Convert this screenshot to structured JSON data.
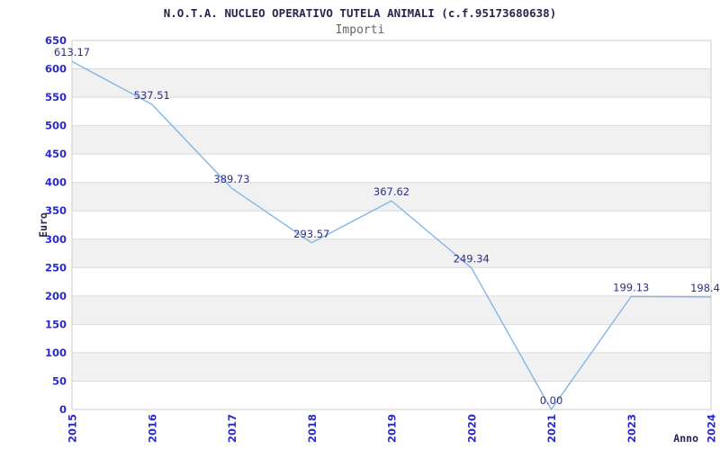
{
  "header": {
    "title": "N.O.T.A. NUCLEO OPERATIVO TUTELA ANIMALI (c.f.95173680638)",
    "subtitle": "Importi"
  },
  "chart_data": {
    "type": "line",
    "title": "N.O.T.A. NUCLEO OPERATIVO TUTELA ANIMALI (c.f.95173680638)",
    "subtitle": "Importi",
    "xlabel": "Anno",
    "ylabel": "Euro",
    "categories": [
      "2015",
      "2016",
      "2017",
      "2018",
      "2019",
      "2020",
      "2021",
      "2023",
      "2024"
    ],
    "values": [
      613.17,
      537.51,
      389.73,
      293.57,
      367.62,
      249.34,
      0.0,
      199.13,
      198.4
    ],
    "point_labels": [
      "613.17",
      "537.51",
      "389.73",
      "293.57",
      "367.62",
      "249.34",
      "0.00",
      "199.13",
      "198.4"
    ],
    "ylim": [
      0,
      650
    ],
    "ytick_step": 50,
    "grid": "horizontal-only",
    "legend": "none",
    "band_pattern": "alternating gray bands between 50-unit gridlines, white at top and bottom",
    "colors": {
      "line": "#85b5e8",
      "tick_label": "#2a2ad2",
      "point_label": "#2e2e87",
      "title": "#26264d",
      "subtitle": "#666666",
      "axis_title": "#26264d",
      "band_gray": "#f1f1f1",
      "gridline": "#d9d9d9",
      "plot_border": "#d4d4d4",
      "background": "#ffffff"
    }
  }
}
